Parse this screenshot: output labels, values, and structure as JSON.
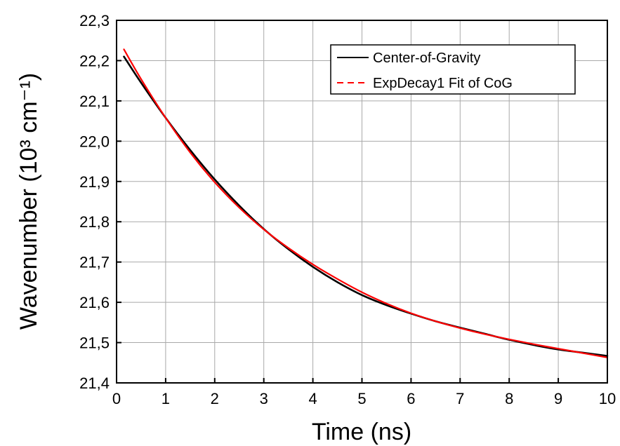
{
  "chart_data": {
    "type": "line",
    "xlabel": "Time (ns)",
    "ylabel": "Wavenumber (10³ cm⁻¹)",
    "xlim": [
      0,
      10
    ],
    "ylim": [
      21.4,
      22.3
    ],
    "xticks": [
      "0",
      "1",
      "2",
      "3",
      "4",
      "5",
      "6",
      "7",
      "8",
      "9",
      "10"
    ],
    "yticks": [
      "21,4",
      "21,5",
      "21,6",
      "21,7",
      "21,8",
      "21,9",
      "22,0",
      "22,1",
      "22,2",
      "22,3"
    ],
    "grid": true,
    "legend_position": "top-right",
    "x": [
      0.15,
      0.5,
      1,
      1.5,
      2,
      2.5,
      3,
      3.5,
      4,
      4.5,
      5,
      5.5,
      6,
      6.5,
      7,
      7.5,
      8,
      8.5,
      9,
      9.5,
      10
    ],
    "series": [
      {
        "name": "Center-of-Gravity",
        "color": "#000000",
        "dash": "solid",
        "values": [
          22.21,
          22.145,
          22.058,
          21.978,
          21.905,
          21.84,
          21.782,
          21.732,
          21.688,
          21.65,
          21.618,
          21.593,
          21.572,
          21.553,
          21.537,
          21.522,
          21.507,
          21.494,
          21.483,
          21.475,
          21.467
        ]
      },
      {
        "name": "ExpDecay1 Fit of CoG",
        "color": "#ff0000",
        "dash": "dashed",
        "values": [
          22.228,
          22.154,
          22.058,
          21.972,
          21.898,
          21.835,
          21.781,
          21.735,
          21.694,
          21.658,
          21.625,
          21.597,
          21.573,
          21.553,
          21.536,
          21.521,
          21.508,
          21.496,
          21.485,
          21.474,
          21.463
        ]
      }
    ]
  }
}
